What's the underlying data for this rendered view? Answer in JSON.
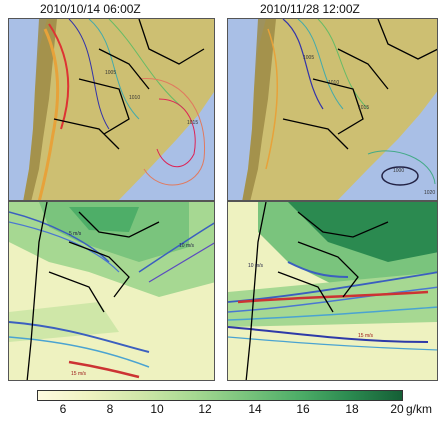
{
  "titles": {
    "left": "2010/10/14 06:00Z",
    "right": "2010/11/28 12:00Z"
  },
  "panels": [
    {
      "id": "p1",
      "kind": "pressure",
      "date": "2010/10/14 06:00Z",
      "contour_labels": [
        "1005",
        "1010",
        "1015"
      ]
    },
    {
      "id": "p2",
      "kind": "pressure",
      "date": "2010/11/28 12:00Z",
      "contour_labels": [
        "1000",
        "1005",
        "1010",
        "1015",
        "1020"
      ]
    },
    {
      "id": "p3",
      "kind": "moisture_flux",
      "date": "2010/10/14 06:00Z",
      "jet_labels": [
        "5 m/s",
        "10 m/s",
        "15 m/s"
      ]
    },
    {
      "id": "p4",
      "kind": "moisture_flux",
      "date": "2010/11/28 12:00Z",
      "jet_labels": [
        "10 m/s",
        "15 m/s"
      ]
    }
  ],
  "colorbar": {
    "ticks": [
      "6",
      "8",
      "10",
      "12",
      "14",
      "16",
      "18",
      "20"
    ],
    "unit": "g/km",
    "colors": [
      "#fffbe0",
      "#eef2c0",
      "#cfe7a8",
      "#a6d892",
      "#7ac47d",
      "#4eae68",
      "#2b8a50",
      "#155f36"
    ]
  },
  "colors": {
    "ocean_light": "#a9bfe6",
    "land_light": "#cdbf72",
    "andes_high": "#9c8a45",
    "border": "#000000"
  }
}
